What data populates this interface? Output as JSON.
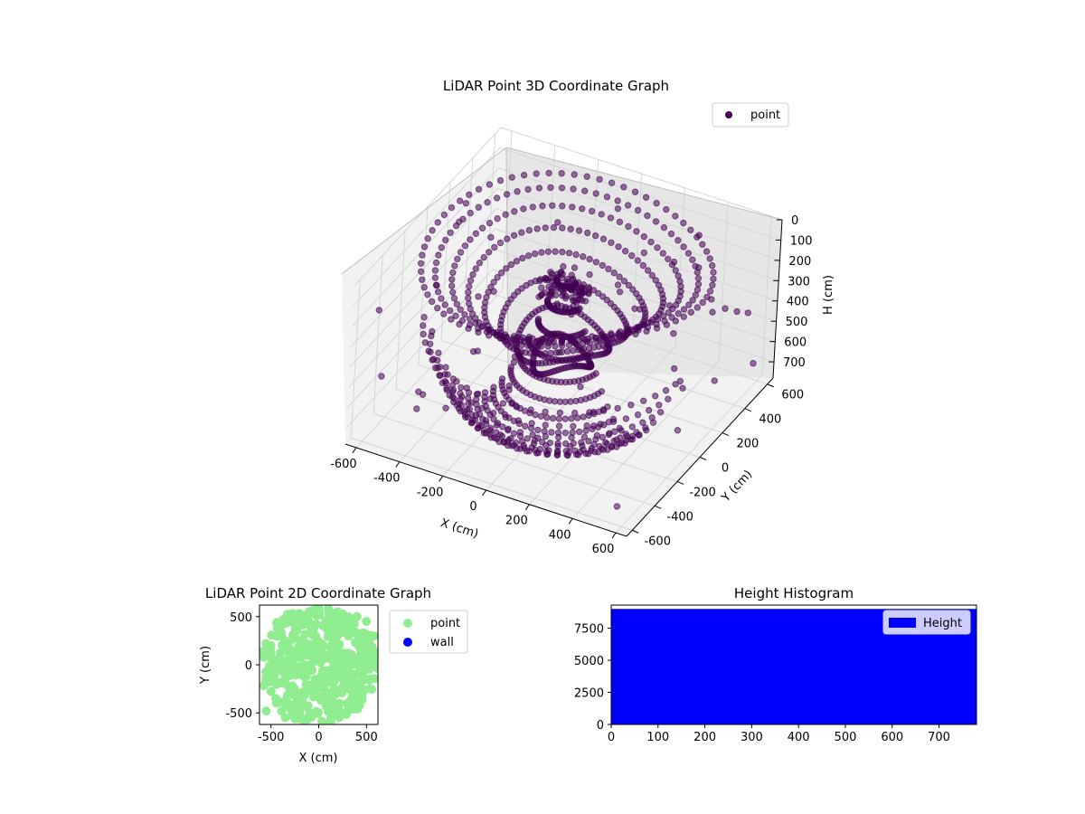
{
  "chart_data": [
    {
      "type": "scatter3d",
      "title": "LiDAR Point 3D Coordinate Graph",
      "xlabel": "X (cm)",
      "ylabel": "Y (cm)",
      "zlabel": "H (cm)",
      "xlim": [
        -650,
        650
      ],
      "ylim": [
        -650,
        650
      ],
      "zlim": [
        780,
        0
      ],
      "xticks": [
        -600,
        -400,
        -200,
        0,
        200,
        400,
        600
      ],
      "yticks": [
        -600,
        -400,
        -200,
        0,
        200,
        400,
        600
      ],
      "zticks": [
        0,
        100,
        200,
        300,
        400,
        500,
        600,
        700
      ],
      "grid": true,
      "legend": {
        "location": "upper right",
        "entries": [
          {
            "name": "point",
            "color": "#440154"
          }
        ]
      },
      "series": [
        {
          "name": "point",
          "color": "#440154",
          "marker": "circle",
          "alpha": 0.55,
          "description_points": [
            [
              0,
              0,
              150
            ],
            [
              -100,
              50,
              160
            ],
            [
              100,
              -50,
              170
            ],
            [
              -200,
              300,
              100
            ],
            [
              200,
              300,
              110
            ],
            [
              -400,
              150,
              420
            ],
            [
              -550,
              -100,
              520
            ],
            [
              -500,
              -300,
              680
            ],
            [
              300,
              -300,
              500
            ],
            [
              450,
              100,
              300
            ],
            [
              -300,
              -450,
              600
            ],
            [
              150,
              -500,
              560
            ],
            [
              550,
              250,
              250
            ],
            [
              -50,
              550,
              130
            ],
            [
              380,
              450,
              210
            ],
            [
              650,
              -200,
              320
            ]
          ]
        }
      ]
    },
    {
      "type": "scatter",
      "title": "LiDAR Point 2D Coordinate Graph",
      "xlabel": "X (cm)",
      "ylabel": "Y (cm)",
      "xlim": [
        -620,
        620
      ],
      "ylim": [
        -620,
        620
      ],
      "xticks": [
        -500,
        0,
        500
      ],
      "yticks": [
        -500,
        0,
        500
      ],
      "legend": {
        "location": "outside right",
        "entries": [
          {
            "name": "point",
            "color": "#90ee90"
          },
          {
            "name": "wall",
            "color": "#0000ff"
          }
        ]
      },
      "series": [
        {
          "name": "point",
          "color": "#90ee90",
          "marker": "circle",
          "sample_points": [
            [
              -550,
              -480
            ],
            [
              -450,
              -350
            ],
            [
              -350,
              -200
            ],
            [
              -250,
              -100
            ],
            [
              -150,
              0
            ],
            [
              -50,
              100
            ],
            [
              50,
              200
            ],
            [
              150,
              300
            ],
            [
              250,
              400
            ],
            [
              350,
              450
            ],
            [
              -500,
              200
            ],
            [
              -400,
              300
            ],
            [
              -300,
              450
            ],
            [
              -100,
              550
            ],
            [
              0,
              600
            ],
            [
              100,
              580
            ],
            [
              200,
              550
            ],
            [
              400,
              500
            ],
            [
              500,
              450
            ],
            [
              580,
              300
            ],
            [
              550,
              150
            ],
            [
              450,
              100
            ],
            [
              350,
              0
            ],
            [
              250,
              -100
            ],
            [
              150,
              -200
            ],
            [
              100,
              -350
            ],
            [
              200,
              -450
            ],
            [
              300,
              -400
            ],
            [
              -200,
              -500
            ],
            [
              -350,
              -550
            ]
          ]
        },
        {
          "name": "wall",
          "color": "#0000ff",
          "marker": "circle",
          "sample_points": []
        }
      ]
    },
    {
      "type": "histogram",
      "title": "Height Histogram",
      "xlim": [
        0,
        780
      ],
      "ylim": [
        0,
        9300
      ],
      "xticks": [
        0,
        100,
        200,
        300,
        400,
        500,
        600,
        700
      ],
      "yticks": [
        0,
        2500,
        5000,
        7500
      ],
      "legend": {
        "location": "upper right",
        "entries": [
          {
            "name": "Height",
            "color": "#0000ff"
          }
        ]
      },
      "bins": [
        {
          "x0": 0,
          "x1": 780,
          "count": 9000
        }
      ],
      "color": "#0000ff"
    }
  ],
  "texts": {
    "title3d": "LiDAR Point 3D Coordinate Graph",
    "title2d": "LiDAR Point 2D Coordinate Graph",
    "titleHist": "Height Histogram",
    "xlabel3d": "X (cm)",
    "ylabel3d": "Y (cm)",
    "zlabel3d": "H (cm)",
    "xlabel2d": "X (cm)",
    "ylabel2d": "Y (cm)",
    "legend3d": "point",
    "legend2d_point": "point",
    "legend2d_wall": "wall",
    "legendHist": "Height"
  }
}
